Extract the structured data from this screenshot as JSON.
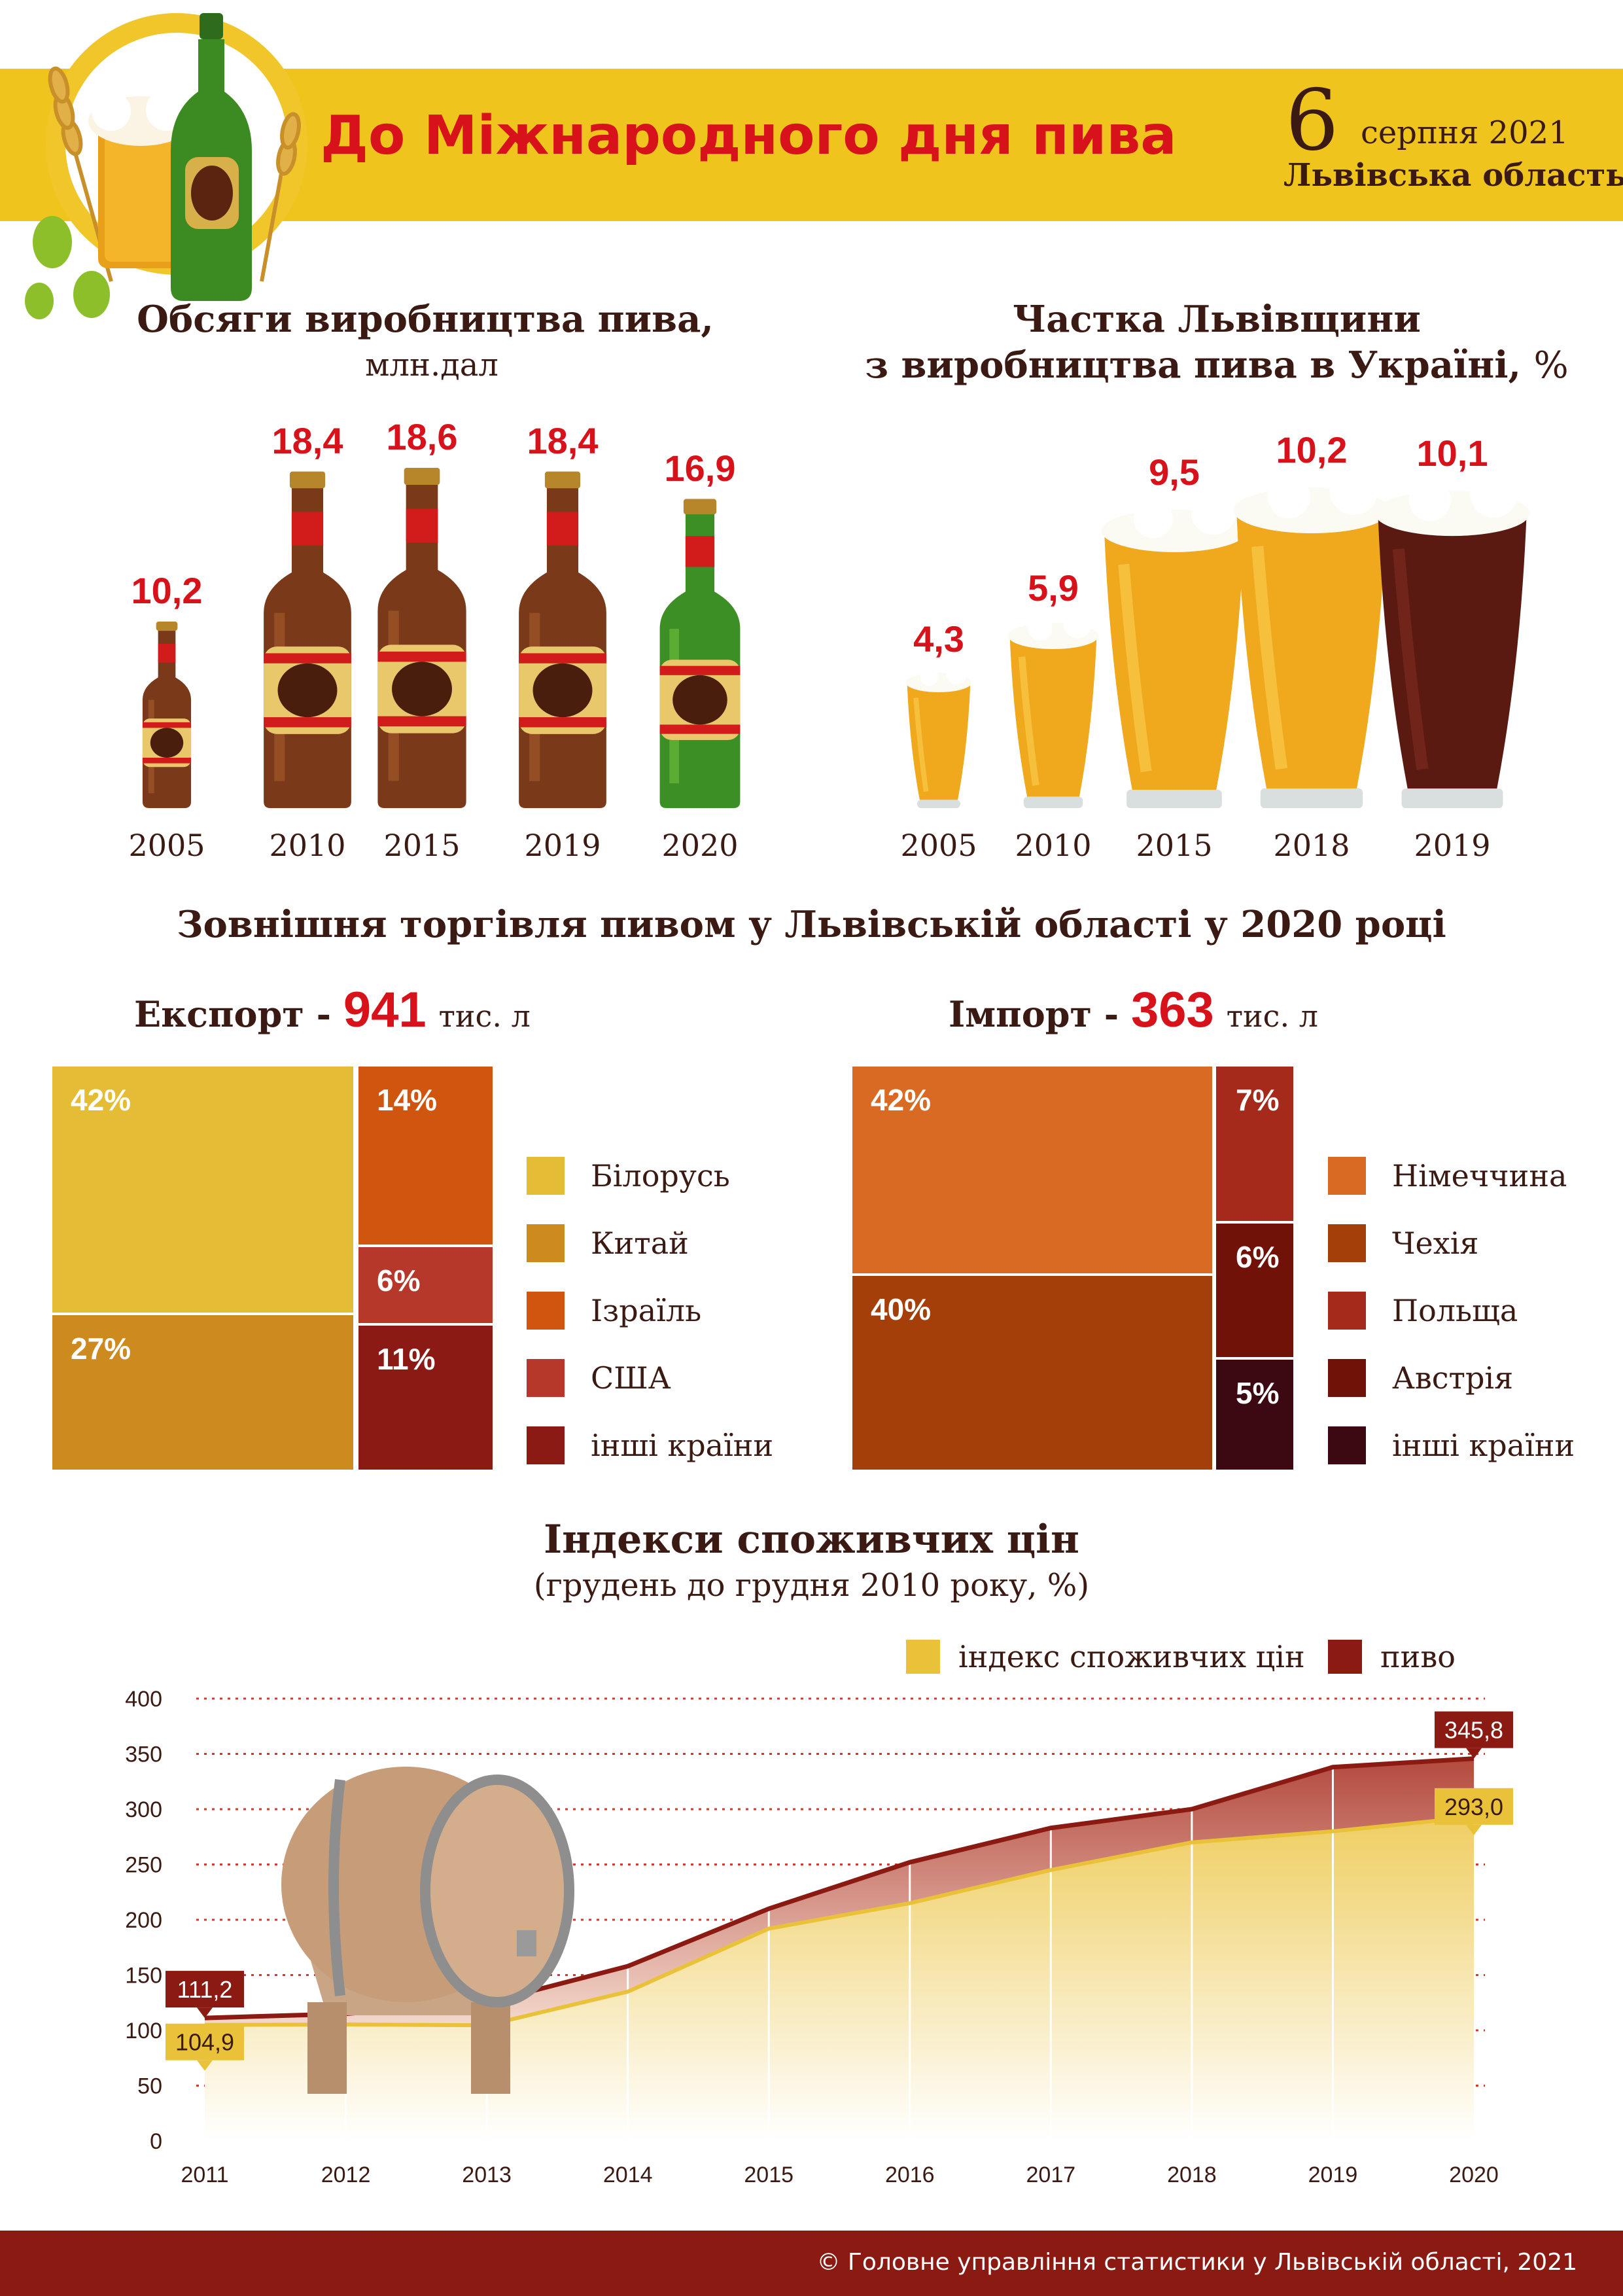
{
  "header": {
    "title": "До Міжнародного дня пива",
    "day": "6",
    "month_year": "серпня 2021",
    "region": "Львівська область",
    "colors": {
      "banner": "#efc51d",
      "title": "#d8121a"
    }
  },
  "production": {
    "title": "Обсяги виробництва пива,",
    "unit": "млн.дал",
    "chart_data": {
      "type": "bar",
      "categories": [
        "2005",
        "2010",
        "2015",
        "2019",
        "2020"
      ],
      "values": [
        10.2,
        18.4,
        18.6,
        18.4,
        16.9
      ],
      "value_labels": [
        "10,2",
        "18,4",
        "18,6",
        "18,4",
        "16,9"
      ]
    }
  },
  "share": {
    "title_line1": "Частка Львівщини",
    "title_line2": "з виробництва пива в Україні,",
    "unit": "%",
    "chart_data": {
      "type": "bar",
      "categories": [
        "2005",
        "2010",
        "2015",
        "2018",
        "2019"
      ],
      "values": [
        4.3,
        5.9,
        9.5,
        10.2,
        10.1
      ],
      "value_labels": [
        "4,3",
        "5,9",
        "9,5",
        "10,2",
        "10,1"
      ]
    }
  },
  "trade": {
    "title": "Зовнішня торгівля пивом у Львівській області у 2020 році",
    "export": {
      "label": "Експорт -",
      "value": "941",
      "unit": "тис. л",
      "chart_data": {
        "type": "treemap",
        "items": [
          {
            "name": "Білорусь",
            "value": 42,
            "label": "42%",
            "color": "#e5bc36"
          },
          {
            "name": "Китай",
            "value": 27,
            "label": "27%",
            "color": "#cd8b1f"
          },
          {
            "name": "Ізраїль",
            "value": 14,
            "label": "14%",
            "color": "#d0550f"
          },
          {
            "name": "США",
            "value": 6,
            "label": "6%",
            "color": "#b6382a"
          },
          {
            "name": "інші країни",
            "value": 11,
            "label": "11%",
            "color": "#8a1a13"
          }
        ]
      }
    },
    "import": {
      "label": "Імпорт -",
      "value": "363",
      "unit": "тис. л",
      "chart_data": {
        "type": "treemap",
        "items": [
          {
            "name": "Німеччина",
            "value": 42,
            "label": "42%",
            "color": "#d86a24"
          },
          {
            "name": "Чехія",
            "value": 40,
            "label": "40%",
            "color": "#a53f0a"
          },
          {
            "name": "Польща",
            "value": 7,
            "label": "7%",
            "color": "#a52a1c"
          },
          {
            "name": "Австрія",
            "value": 6,
            "label": "6%",
            "color": "#701208"
          },
          {
            "name": "інші країни",
            "value": 5,
            "label": "5%",
            "color": "#3c0812"
          }
        ]
      }
    }
  },
  "cpi": {
    "title": "Індекси споживчих цін",
    "subtitle": "(грудень до грудня 2010 року, %)",
    "chart_data": {
      "type": "area",
      "x": [
        "2011",
        "2012",
        "2013",
        "2014",
        "2015",
        "2016",
        "2017",
        "2018",
        "2019",
        "2020"
      ],
      "ylim": [
        0,
        400
      ],
      "yticks": [
        0,
        50,
        100,
        150,
        200,
        250,
        300,
        350,
        400
      ],
      "grid": true,
      "legend_position": "top-right",
      "series": [
        {
          "name": "індекс споживчих цін",
          "color": "#e9c23a",
          "values": [
            104.9,
            105.3,
            104.6,
            135,
            192,
            215,
            245,
            270,
            280,
            293.0
          ]
        },
        {
          "name": "пиво",
          "color": "#8b1a12",
          "values": [
            111.2,
            115,
            125,
            158,
            210,
            252,
            283,
            300,
            338,
            345.8
          ]
        }
      ],
      "annotations": [
        {
          "series": "пиво",
          "x": "2011",
          "label": "111,2"
        },
        {
          "series": "індекс споживчих цін",
          "x": "2011",
          "label": "104,9"
        },
        {
          "series": "пиво",
          "x": "2020",
          "label": "345,8"
        },
        {
          "series": "індекс споживчих цін",
          "x": "2020",
          "label": "293,0"
        }
      ]
    }
  },
  "footer": {
    "text": "© Головне управління статистики у Львівській області, 2021"
  }
}
